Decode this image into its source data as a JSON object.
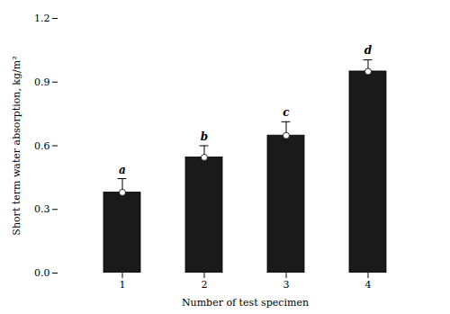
{
  "chart_data": {
    "type": "bar",
    "categories": [
      1,
      2,
      3,
      4
    ],
    "values": [
      0.38,
      0.545,
      0.648,
      0.95
    ],
    "errors": [
      0.065,
      0.055,
      0.065,
      0.055
    ],
    "letters": [
      "a",
      "b",
      "c",
      "d"
    ],
    "color": "#1a1a1a",
    "marker": "circle",
    "xlabel": "Number of test specimen",
    "ylabel": "Short term water absorption, kg/m²",
    "ylim": [
      0.0,
      1.2
    ],
    "yticks": [
      {
        "value": 0,
        "label": "0.0"
      },
      0.3,
      0.6,
      0.9,
      1.2
    ]
  }
}
